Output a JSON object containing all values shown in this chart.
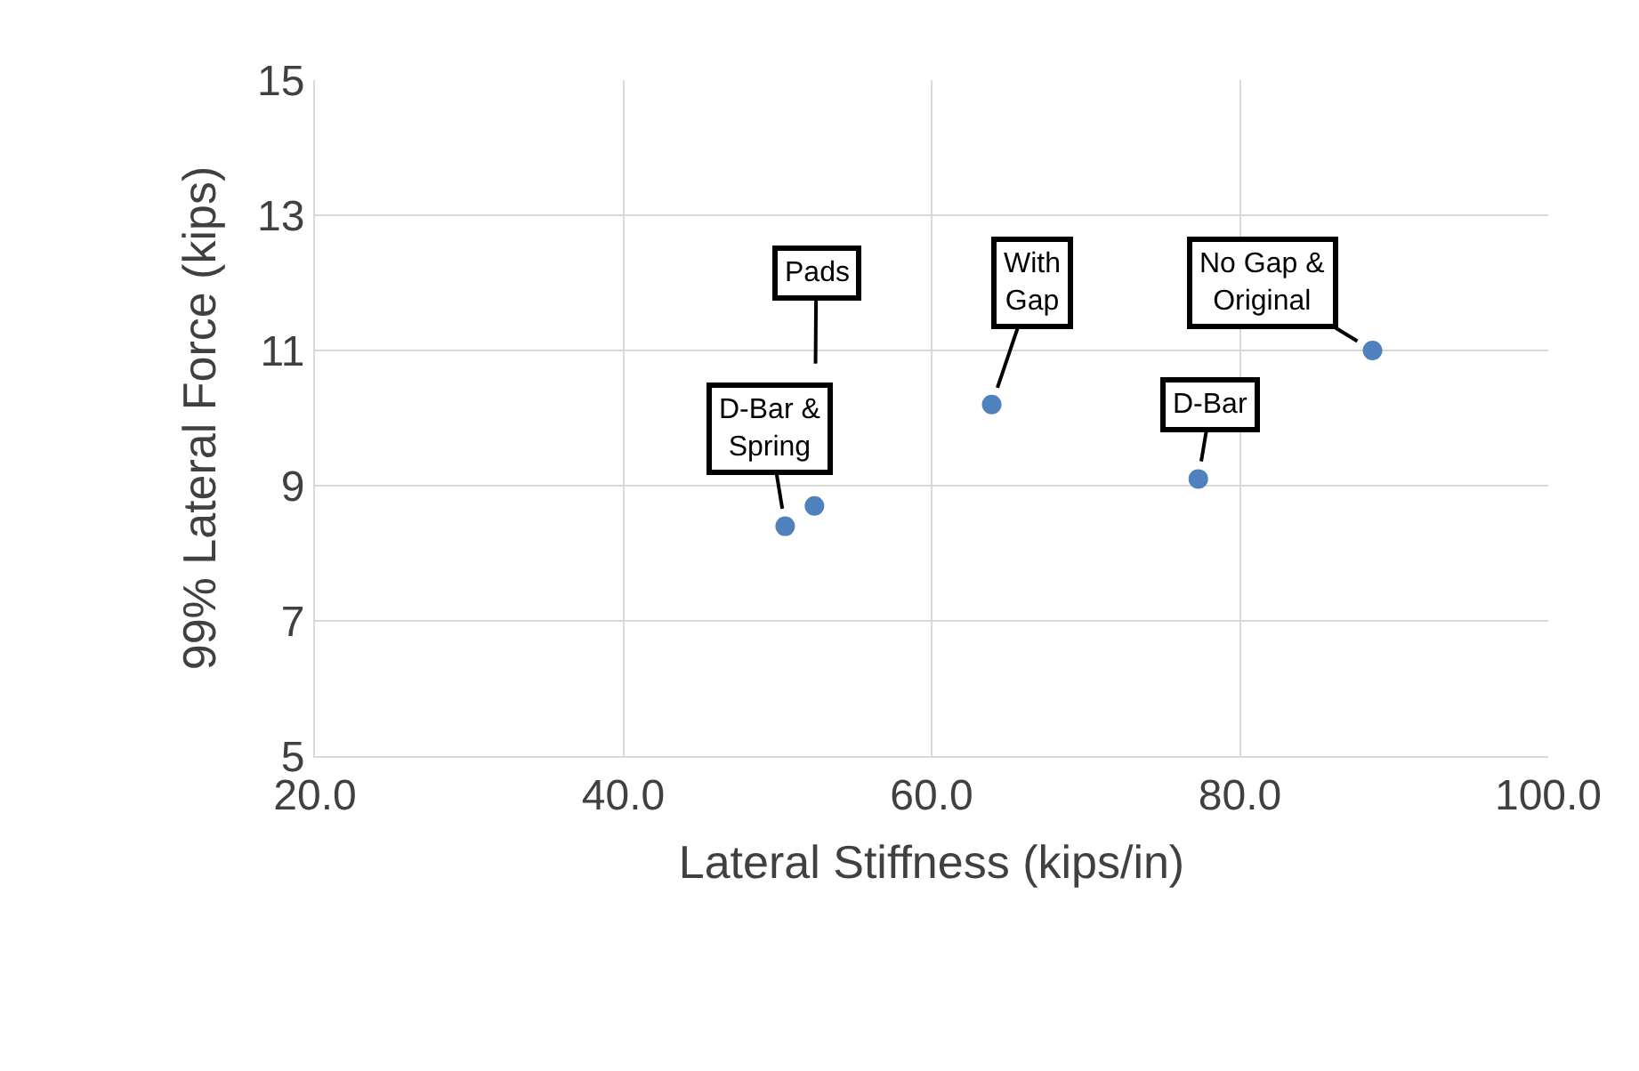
{
  "chart_data": {
    "type": "scatter",
    "xlabel": "Lateral Stiffness (kips/in)",
    "ylabel": "99% Lateral Force (kips)",
    "x": [
      50.5,
      52.4,
      63.9,
      77.3,
      88.6
    ],
    "series": [
      {
        "color": "#4f81bd",
        "values": [
          8.4,
          8.7,
          10.2,
          9.1,
          11.0
        ]
      }
    ],
    "xlim": [
      20,
      100
    ],
    "xticks": [
      {
        "value": 20,
        "label": "20.0"
      },
      {
        "value": 40,
        "label": "40.0"
      },
      {
        "value": 60,
        "label": "60.0"
      },
      {
        "value": 80,
        "label": "80.0"
      },
      {
        "value": 100,
        "label": "100.0"
      }
    ],
    "ylim": [
      5,
      15
    ],
    "yticks": [
      5,
      7,
      9,
      11,
      13,
      15
    ],
    "grid": true,
    "marker": "circle",
    "legend": false,
    "annotations": [
      {
        "text": "D-Bar &\nSpring",
        "x": 50.5,
        "y": 8.4
      },
      {
        "text": "Pads",
        "x": 52.4,
        "y": 8.7
      },
      {
        "text": "With\nGap",
        "x": 63.9,
        "y": 10.2
      },
      {
        "text": "D-Bar",
        "x": 77.3,
        "y": 9.1
      },
      {
        "text": "No Gap &\nOriginal",
        "x": 88.6,
        "y": 11.0
      }
    ]
  }
}
